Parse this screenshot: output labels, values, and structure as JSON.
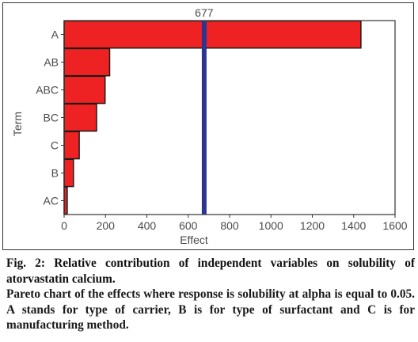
{
  "chart_data": {
    "type": "bar",
    "orientation": "horizontal",
    "categories": [
      "A",
      "AB",
      "ABC",
      "BC",
      "C",
      "B",
      "AC"
    ],
    "values": [
      1435,
      220,
      198,
      157,
      73,
      45,
      15
    ],
    "xlabel": "Effect",
    "ylabel": "Term",
    "xlim": [
      0,
      1600
    ],
    "xticks": [
      0,
      200,
      400,
      600,
      800,
      1000,
      1200,
      1400,
      1600
    ],
    "reference_line": {
      "value": 677,
      "label": "677"
    },
    "grid": false
  },
  "colors": {
    "bar_fill": "#ee2222",
    "bar_stroke": "#1a1a1a",
    "reference_line": "#2b3590"
  },
  "caption": {
    "title": "Fig. 2: Relative contribution of independent variables on solubility of atorvastatin calcium.",
    "body": "Pareto chart of the effects where response is solubility at alpha is equal to 0.05. A stands for type of carrier, B is for type of surfactant and C is for manufacturing method."
  }
}
